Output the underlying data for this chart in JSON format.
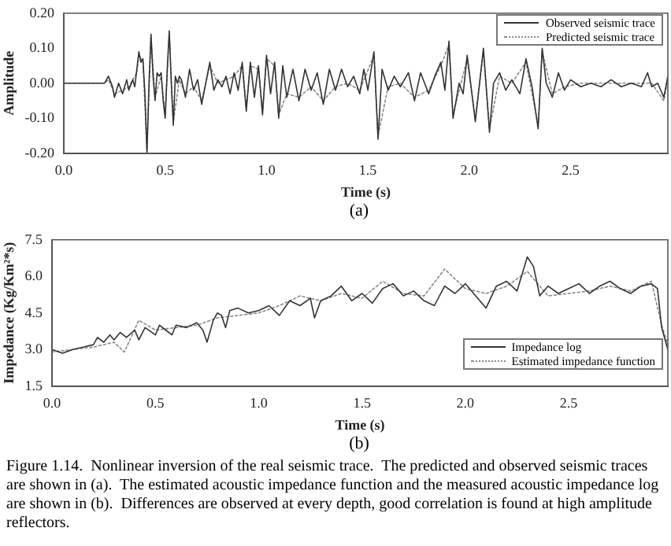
{
  "chart_data": [
    {
      "type": "line",
      "xlabel": "Time (s)",
      "ylabel": "Amplitude",
      "legend": "top right",
      "annotations": [
        "(a)"
      ],
      "xlim": [
        0,
        2.98
      ],
      "xticks": [
        {
          "value": 0,
          "label": "0.0"
        },
        0.5,
        {
          "value": 1,
          "label": "1.0"
        },
        1.5,
        {
          "value": 2,
          "label": "2.0"
        },
        2.5
      ],
      "ylim": [
        -0.2,
        0.2
      ],
      "yticks": [
        {
          "value": -0.2,
          "label": "-0.20"
        },
        {
          "value": -0.1,
          "label": "-0.10"
        },
        {
          "value": 0,
          "label": "0.00"
        },
        {
          "value": 0.1,
          "label": "0.10"
        },
        {
          "value": 0.2,
          "label": "0.20"
        }
      ],
      "series": [
        {
          "name": "Observed seismic trace",
          "color": "#333333",
          "line_style": "solid",
          "x": [
            0,
            0.2,
            0.22,
            0.24,
            0.25,
            0.27,
            0.29,
            0.31,
            0.32,
            0.34,
            0.35,
            0.36,
            0.37,
            0.38,
            0.39,
            0.4,
            0.41,
            0.42,
            0.43,
            0.44,
            0.45,
            0.46,
            0.47,
            0.48,
            0.49,
            0.5,
            0.51,
            0.52,
            0.53,
            0.54,
            0.55,
            0.56,
            0.57,
            0.58,
            0.6,
            0.62,
            0.64,
            0.66,
            0.68,
            0.7,
            0.72,
            0.74,
            0.76,
            0.78,
            0.8,
            0.82,
            0.84,
            0.86,
            0.88,
            0.9,
            0.92,
            0.94,
            0.96,
            0.98,
            1.0,
            1.02,
            1.04,
            1.06,
            1.08,
            1.1,
            1.13,
            1.16,
            1.19,
            1.22,
            1.25,
            1.28,
            1.31,
            1.34,
            1.37,
            1.4,
            1.43,
            1.46,
            1.48,
            1.5,
            1.53,
            1.55,
            1.57,
            1.6,
            1.63,
            1.66,
            1.7,
            1.73,
            1.76,
            1.8,
            1.83,
            1.86,
            1.88,
            1.9,
            1.92,
            1.95,
            1.97,
            1.99,
            2.03,
            2.07,
            2.1,
            2.12,
            2.15,
            2.18,
            2.21,
            2.25,
            2.28,
            2.31,
            2.34,
            2.36,
            2.38,
            2.41,
            2.44,
            2.47,
            2.5,
            2.55,
            2.6,
            2.65,
            2.7,
            2.75,
            2.8,
            2.85,
            2.88,
            2.9,
            2.93,
            2.96,
            2.98
          ],
          "values": [
            0,
            0,
            0.02,
            -0.01,
            -0.04,
            0,
            -0.03,
            0.01,
            -0.02,
            0.01,
            -0.01,
            0.04,
            0.09,
            0.06,
            0.07,
            -0.03,
            -0.2,
            0,
            0.14,
            0.02,
            -0.05,
            0.03,
            0.02,
            0.03,
            -0.05,
            -0.1,
            0.04,
            0.15,
            0,
            -0.12,
            0.02,
            0,
            0.02,
            0.01,
            -0.04,
            0.04,
            -0.02,
            0.01,
            -0.06,
            0,
            0.06,
            -0.02,
            0.01,
            -0.01,
            0.02,
            -0.03,
            0.03,
            -0.02,
            0.06,
            -0.08,
            0.06,
            -0.04,
            0.05,
            -0.09,
            0.08,
            -0.03,
            0.06,
            -0.1,
            0.05,
            -0.04,
            0.04,
            -0.05,
            0.04,
            -0.02,
            0.03,
            -0.06,
            0.04,
            -0.02,
            0.04,
            -0.01,
            0.02,
            -0.03,
            0.04,
            -0.02,
            0.09,
            -0.16,
            0.04,
            -0.02,
            0.02,
            -0.01,
            0.03,
            -0.05,
            0.03,
            -0.03,
            0.02,
            0.06,
            -0.02,
            0.12,
            -0.1,
            0,
            -0.03,
            0.08,
            -0.11,
            0.1,
            -0.14,
            0,
            0.03,
            -0.02,
            0.01,
            -0.03,
            0.07,
            -0.01,
            -0.13,
            0.1,
            0,
            -0.04,
            0.03,
            -0.02,
            0.01,
            -0.01,
            0,
            -0.01,
            0.01,
            -0.01,
            0,
            -0.01,
            0.03,
            -0.01,
            0,
            -0.04,
            0.02
          ]
        },
        {
          "name": "Predicted seismic trace",
          "color": "#888888",
          "line_style": "dotted",
          "x": [
            0,
            0.2,
            0.22,
            0.25,
            0.29,
            0.32,
            0.36,
            0.37,
            0.39,
            0.41,
            0.43,
            0.45,
            0.48,
            0.5,
            0.52,
            0.54,
            0.57,
            0.6,
            0.64,
            0.68,
            0.72,
            0.76,
            0.8,
            0.84,
            0.88,
            0.9,
            0.92,
            0.96,
            0.98,
            1.0,
            1.04,
            1.06,
            1.1,
            1.16,
            1.22,
            1.28,
            1.34,
            1.4,
            1.46,
            1.53,
            1.55,
            1.6,
            1.66,
            1.73,
            1.8,
            1.86,
            1.9,
            1.92,
            1.99,
            2.03,
            2.07,
            2.1,
            2.15,
            2.21,
            2.28,
            2.34,
            2.36,
            2.41,
            2.47,
            2.55,
            2.65,
            2.75,
            2.85,
            2.9,
            2.96,
            2.98
          ],
          "values": [
            0,
            0,
            0.01,
            -0.03,
            -0.02,
            -0.01,
            0.03,
            0.08,
            0.06,
            -0.19,
            0.13,
            -0.04,
            0.02,
            -0.09,
            0.14,
            -0.11,
            0.01,
            -0.03,
            -0.01,
            -0.05,
            0.05,
            0,
            0.01,
            0.02,
            0.05,
            -0.07,
            0.05,
            0.04,
            -0.08,
            0.07,
            0.05,
            -0.09,
            -0.03,
            -0.04,
            -0.01,
            -0.05,
            -0.01,
            0,
            -0.02,
            0.08,
            -0.15,
            -0.01,
            0,
            -0.04,
            -0.02,
            0.05,
            0.11,
            -0.09,
            0.07,
            -0.1,
            0.09,
            -0.13,
            0.02,
            0,
            0.06,
            -0.12,
            0.09,
            -0.03,
            -0.01,
            0,
            0,
            0,
            0,
            0,
            -0.05,
            0.01
          ]
        }
      ]
    },
    {
      "type": "line",
      "xlabel": "Time (s)",
      "ylabel": "Impedance (Kg/Km²*s)",
      "legend": "bottom right",
      "annotations": [
        "(b)",
        "Figure 1.14.  Nonlinear inversion of the real seismic trace.  The predicted and observed seismic traces are shown in (a).  The estimated acoustic impedance function and the measured acoustic impedance log are shown in (b).  Differences are observed at every depth, good correlation is found at high amplitude reflectors."
      ],
      "xlim": [
        0,
        2.98
      ],
      "xticks": [
        {
          "value": 0,
          "label": "0.0"
        },
        0.5,
        {
          "value": 1,
          "label": "1.0"
        },
        1.5,
        {
          "value": 2,
          "label": "2.0"
        },
        2.5
      ],
      "ylim": [
        1.5,
        7.5
      ],
      "yticks": [
        1.5,
        {
          "value": 3,
          "label": "3.0"
        },
        4.5,
        {
          "value": 6,
          "label": "6.0"
        },
        7.5
      ],
      "series": [
        {
          "name": "Impedance log",
          "color": "#333333",
          "line_style": "solid",
          "x": [
            0,
            0.05,
            0.1,
            0.15,
            0.2,
            0.22,
            0.25,
            0.28,
            0.3,
            0.33,
            0.36,
            0.4,
            0.42,
            0.45,
            0.5,
            0.52,
            0.55,
            0.58,
            0.6,
            0.65,
            0.7,
            0.73,
            0.75,
            0.78,
            0.8,
            0.82,
            0.84,
            0.86,
            0.9,
            0.95,
            1.0,
            1.05,
            1.1,
            1.15,
            1.2,
            1.25,
            1.27,
            1.3,
            1.35,
            1.4,
            1.45,
            1.5,
            1.55,
            1.6,
            1.65,
            1.7,
            1.75,
            1.8,
            1.85,
            1.9,
            1.95,
            2.0,
            2.05,
            2.1,
            2.15,
            2.2,
            2.25,
            2.3,
            2.33,
            2.36,
            2.4,
            2.45,
            2.5,
            2.55,
            2.6,
            2.65,
            2.7,
            2.75,
            2.8,
            2.85,
            2.9,
            2.93,
            2.95,
            2.98
          ],
          "values": [
            3.0,
            2.85,
            3.0,
            3.1,
            3.2,
            3.5,
            3.3,
            3.6,
            3.4,
            3.7,
            3.5,
            3.8,
            3.4,
            3.9,
            3.6,
            4.0,
            3.8,
            3.6,
            4.0,
            3.9,
            4.1,
            3.8,
            3.3,
            4.2,
            4.5,
            4.4,
            3.9,
            4.6,
            4.7,
            4.5,
            4.6,
            4.8,
            4.4,
            5.0,
            4.8,
            5.1,
            4.3,
            5.0,
            5.2,
            5.6,
            5.0,
            5.3,
            4.9,
            5.5,
            5.7,
            5.2,
            5.4,
            5.0,
            4.8,
            5.6,
            5.3,
            5.7,
            5.2,
            4.7,
            5.6,
            5.8,
            5.4,
            6.8,
            6.4,
            5.2,
            5.6,
            5.3,
            5.5,
            5.7,
            5.3,
            5.6,
            5.8,
            5.5,
            5.3,
            5.6,
            5.7,
            5.5,
            3.9,
            3.0
          ]
        },
        {
          "name": "Estimated impedance function",
          "color": "#888888",
          "line_style": "dotted",
          "x": [
            0,
            0.1,
            0.2,
            0.3,
            0.35,
            0.42,
            0.5,
            0.6,
            0.7,
            0.8,
            0.9,
            1.0,
            1.1,
            1.2,
            1.3,
            1.4,
            1.5,
            1.6,
            1.7,
            1.8,
            1.9,
            2.0,
            2.1,
            2.2,
            2.3,
            2.4,
            2.5,
            2.6,
            2.7,
            2.8,
            2.9,
            2.95,
            2.98
          ],
          "values": [
            2.9,
            3.0,
            3.1,
            3.3,
            2.9,
            4.2,
            3.8,
            3.9,
            4.0,
            4.3,
            4.4,
            4.5,
            4.8,
            5.2,
            5.0,
            5.3,
            5.1,
            5.8,
            5.3,
            5.2,
            6.3,
            5.5,
            5.3,
            5.6,
            6.2,
            5.2,
            5.3,
            5.4,
            5.6,
            5.4,
            5.8,
            4.0,
            3.2
          ]
        }
      ]
    }
  ]
}
